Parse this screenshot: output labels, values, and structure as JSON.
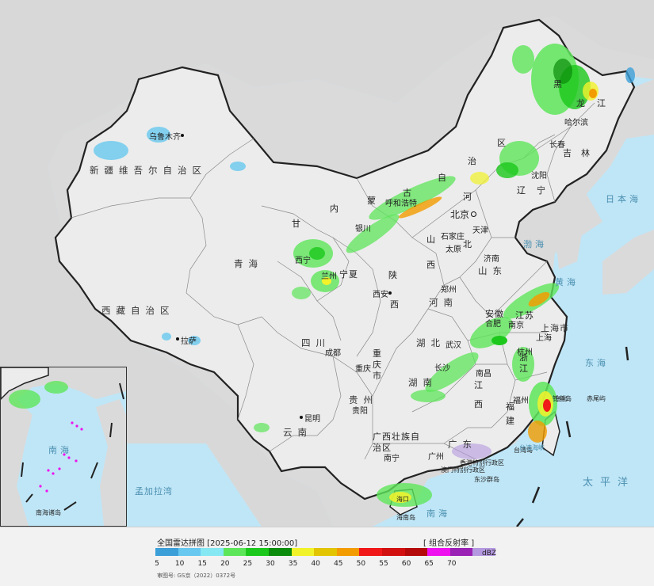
{
  "map": {
    "province_labels": {
      "xinjiang": "新疆维吾尔自治区",
      "xizang": "西藏自治区",
      "qinghai": "青海",
      "gansu": "甘",
      "sichuan": "四川",
      "yunnan": "云南",
      "guizhou": "贵州",
      "guangxi": "广西壮族自治区",
      "neimenggu_1": "内",
      "neimenggu_2": "蒙",
      "neimenggu_3": "古",
      "neimenggu_4": "自",
      "neimenggu_5": "治",
      "neimenggu_6": "区",
      "heilongjiang_1": "黑",
      "heilongjiang_2": "龙",
      "heilongjiang_3": "江",
      "jilin_1": "吉",
      "jilin_2": "林",
      "liaoning_1": "辽",
      "liaoning_2": "宁",
      "hebei_1": "河",
      "hebei_2": "北",
      "shanxi_1": "山",
      "shanxi_2": "西",
      "shandong": "山东",
      "shaanxi_1": "陕",
      "shaanxi_2": "西",
      "henan": "河南",
      "hubei": "湖北",
      "hunan": "湖南",
      "jiangxi": "江西",
      "anhui": "安徽",
      "jiangsu": "江苏",
      "zhejiang": "浙江",
      "fujian": "福建",
      "guangdong": "广东",
      "ningxia": "宁夏",
      "chongqing": "重庆市"
    },
    "city_labels": {
      "urumqi": "乌鲁木齐",
      "lhasa": "拉萨",
      "xining": "西宁",
      "lanzhou": "兰州",
      "yinchuan": "银川",
      "hohhot": "呼和浩特",
      "beijing": "北京",
      "tianjin": "天津",
      "shijiazhuang": "石家庄",
      "taiyuan": "太原",
      "jinan": "济南",
      "zhengzhou": "郑州",
      "xian": "西安",
      "chengdu": "成都",
      "chongqing": "重庆",
      "guiyang": "贵阳",
      "kunming": "昆明",
      "nanning": "南宁",
      "guangzhou": "广州",
      "changsha": "长沙",
      "wuhan": "武汉",
      "nanchang": "南昌",
      "hefei": "合肥",
      "nanjing": "南京",
      "shanghai": "上海",
      "shanghai_region": "上海市",
      "hangzhou": "杭州",
      "fuzhou": "福州",
      "taipei": "台北",
      "haikou": "海口",
      "shenyang": "沈阳",
      "changchun": "长春",
      "harbin": "哈尔滨",
      "hongkong": "香港特别行政区",
      "macau": "澳门特别行政区",
      "taiwan": "台湾岛",
      "hainan": "海南岛",
      "dongsha": "东沙群岛",
      "diaoyu": "钓鱼岛",
      "chiwei": "赤尾屿"
    },
    "sea_labels": {
      "bohai": "渤海",
      "huanghai": "黄海",
      "donghai": "东海",
      "nanhai": "南海",
      "japan_sea": "日本海",
      "pacific": "太平洋",
      "bengal": "孟加拉湾",
      "taiwan_strait": "台湾海峡"
    },
    "inset_labels": {
      "nanhai": "南海",
      "nanhai_islands": "南海诸岛"
    }
  },
  "legend": {
    "title": "全国雷达拼图 [2025-06-12 15:00:00]",
    "mode": "[ 组合反射率 ]",
    "unit": "dBZ",
    "colors": [
      "#3c9fd8",
      "#68c8ef",
      "#86e8f2",
      "#5ee65a",
      "#1cc81c",
      "#0c8c0c",
      "#f2f22a",
      "#e2c400",
      "#f29c00",
      "#f01818",
      "#d21010",
      "#b40a0a",
      "#ee10ee",
      "#9a22b4",
      "#b499e0"
    ],
    "ticks": [
      "5",
      "10",
      "15",
      "20",
      "25",
      "30",
      "35",
      "40",
      "45",
      "50",
      "55",
      "60",
      "65",
      "70"
    ],
    "approval_number": "审图号: GS京（2022）0372号"
  }
}
